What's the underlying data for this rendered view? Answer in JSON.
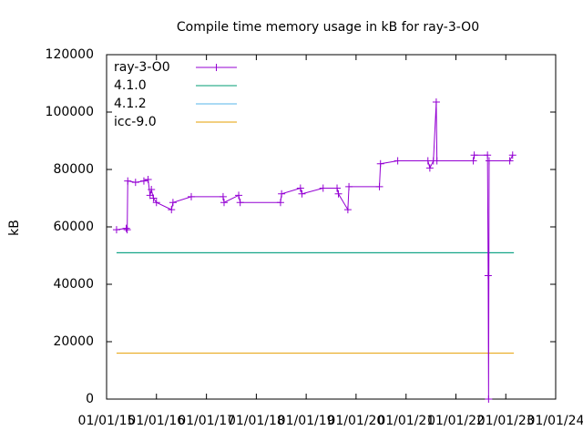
{
  "chart_data": {
    "type": "line",
    "title": "Compile time memory usage in kB for ray-3-O0",
    "ylabel": "kB",
    "ylim": [
      0,
      120000
    ],
    "yticks": [
      0,
      20000,
      40000,
      60000,
      80000,
      100000,
      120000
    ],
    "xlim": [
      "01/01/15",
      "01/01/24"
    ],
    "xticks": [
      "01/01/15",
      "01/01/16",
      "01/01/17",
      "01/01/18",
      "01/01/19",
      "01/01/20",
      "01/01/21",
      "01/01/22",
      "01/01/23",
      "01/01/24"
    ],
    "legend": "top-left",
    "series": [
      {
        "name": "ray-3-O0",
        "color": "#9400d3",
        "marker": "plus",
        "x": [
          "03/15/15",
          "05/25/15",
          "06/01/15",
          "06/05/15",
          "08/01/15",
          "10/01/15",
          "11/01/15",
          "11/15/15",
          "11/25/15",
          "12/10/15",
          "01/01/16",
          "04/20/16",
          "05/01/16",
          "09/12/16",
          "05/03/17",
          "05/10/17",
          "08/25/17",
          "09/05/17",
          "06/27/18",
          "07/05/18",
          "11/20/18",
          "12/01/18",
          "05/05/19",
          "08/15/19",
          "08/25/19",
          "11/02/19",
          "11/10/19",
          "06/20/20",
          "06/28/20",
          "11/01/20",
          "06/10/21",
          "06/24/21",
          "07/20/21",
          "08/10/21",
          "08/15/21",
          "05/08/22",
          "05/15/22",
          "08/20/22",
          "08/25/22",
          "08/28/22",
          "09/01/22",
          "01/30/23",
          "02/20/23"
        ],
        "values": [
          59000,
          59500,
          59000,
          76000,
          75500,
          76000,
          76500,
          71000,
          73000,
          70000,
          68500,
          66000,
          68500,
          70500,
          70500,
          68500,
          71000,
          68500,
          68500,
          71500,
          73500,
          71500,
          73500,
          73500,
          71500,
          66000,
          74000,
          74000,
          82000,
          83000,
          83000,
          80500,
          83000,
          103500,
          83000,
          83000,
          85000,
          85000,
          43000,
          0,
          83000,
          83000,
          85000
        ]
      },
      {
        "name": "4.1.0",
        "color": "#009e73",
        "x": [
          "03/15/15",
          "03/01/23"
        ],
        "values": [
          51000,
          51000
        ]
      },
      {
        "name": "4.1.2",
        "color": "#56b4e9",
        "x": [
          "03/15/15",
          "03/01/23"
        ],
        "values": [
          51000,
          51000
        ]
      },
      {
        "name": "icc-9.0",
        "color": "#e69f00",
        "x": [
          "03/15/15",
          "03/01/23"
        ],
        "values": [
          16000,
          16000
        ]
      }
    ]
  }
}
